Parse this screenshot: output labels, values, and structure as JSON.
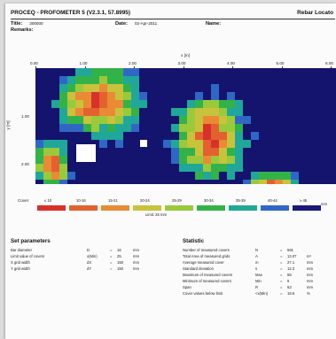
{
  "header": {
    "app_title": "PROCEQ - PROFOMETER 5 (V2.3.1, 57.8995)",
    "brand": "Rebar Locato"
  },
  "meta": {
    "title_label": "Title:",
    "title_value": "300000",
    "remarks_label": "Remarks:",
    "date_label": "Date:",
    "date_value": "02-Apr-2011",
    "name_label": "Name:",
    "name_value": ""
  },
  "map": {
    "x_axis_label": "x [m]",
    "y_axis_label": "y [m]",
    "x_ticks": [
      "0.00",
      "1.00",
      "2.00",
      "3.00",
      "4.00",
      "5.00",
      "6.00"
    ],
    "y_ticks": [
      "1.00",
      "2.00"
    ],
    "x_range": [
      0,
      6.0
    ],
    "y_range": [
      0,
      2.4
    ]
  },
  "legend": {
    "label": "Cover",
    "unit": "mm",
    "limit": "Limit: 25 mm",
    "items": [
      {
        "label": "≤ 10",
        "color": "#d8312c"
      },
      {
        "label": "10-16",
        "color": "#e2612f"
      },
      {
        "label": "15-21",
        "color": "#ea8a35"
      },
      {
        "label": "20-24",
        "color": "#c8c23c"
      },
      {
        "label": "25-29",
        "color": "#9bc93c"
      },
      {
        "label": "30-34",
        "color": "#33b24a"
      },
      {
        "label": "35-39",
        "color": "#21a79a"
      },
      {
        "label": "40-44",
        "color": "#3067c5"
      },
      {
        "label": "≥ 45",
        "color": "#1a1a78"
      }
    ]
  },
  "set_parameters": {
    "title": "Set parameters",
    "rows": [
      {
        "label": "Bar diameter",
        "symbol": "D",
        "eq": "=",
        "value": "16",
        "unit": "mm"
      },
      {
        "label": "Limit value of covers",
        "symbol": "x(Min)",
        "eq": "=",
        "value": "25",
        "unit": "mm"
      },
      {
        "label": "X grid width",
        "symbol": "dX",
        "eq": "=",
        "value": "150",
        "unit": "mm"
      },
      {
        "label": "Y grid width",
        "symbol": "dY",
        "eq": "=",
        "value": "150",
        "unit": "mm"
      }
    ]
  },
  "statistic": {
    "title": "Statistic",
    "rows": [
      {
        "label": "Number of measured covers",
        "symbol": "N",
        "eq": "=",
        "value": "591",
        "unit": ""
      },
      {
        "label": "Total Area of measured grids",
        "symbol": "A",
        "eq": "=",
        "value": "13.07",
        "unit": "m²"
      },
      {
        "label": "Average measured cover",
        "symbol": "m",
        "eq": "=",
        "value": "27.1",
        "unit": "mm"
      },
      {
        "label": "Standard deviation",
        "symbol": "s",
        "eq": "=",
        "value": "12.3",
        "unit": "mm"
      },
      {
        "label": "Maximum of measured covers",
        "symbol": "Max",
        "eq": "=",
        "value": "58",
        "unit": "mm"
      },
      {
        "label": "Minimum of measured covers",
        "symbol": "Min",
        "eq": "=",
        "value": "5",
        "unit": "mm"
      },
      {
        "label": "Span",
        "symbol": "R",
        "eq": "=",
        "value": "53",
        "unit": "mm"
      },
      {
        "label": "Cover values below limit",
        "symbol": "<x(Min)",
        "eq": "=",
        "value": "19.6",
        "unit": "%"
      }
    ]
  }
}
